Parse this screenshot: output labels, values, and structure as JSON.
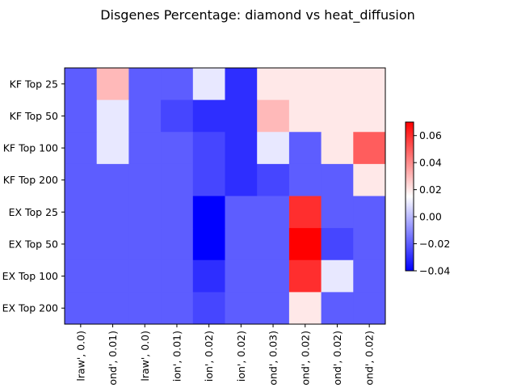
{
  "chart_data": {
    "type": "heatmap",
    "title": "Disgenes Percentage: diamond vs heat_diffusion",
    "xlabel": "",
    "ylabel": "",
    "row_labels": [
      "KF Top 25",
      "KF Top 50",
      "KF Top 100",
      "KF Top 200",
      "EX Top 25",
      "EX Top 50",
      "EX Top 100",
      "EX Top 200"
    ],
    "col_labels": [
      "lraw', 0.0)",
      "ond', 0.01)",
      "lraw', 0.0)",
      "ion', 0.01)",
      "ion', 0.02)",
      "ion', 0.02)",
      "ond', 0.03)",
      "ond', 0.02)",
      "ond', 0.02)",
      "ond', 0.02)"
    ],
    "values": [
      [
        -0.02,
        0.03,
        -0.02,
        -0.02,
        0.01,
        -0.03,
        0.02,
        0.02,
        0.02,
        0.02
      ],
      [
        -0.02,
        0.01,
        -0.02,
        -0.025,
        -0.03,
        -0.03,
        0.03,
        0.02,
        0.02,
        0.02
      ],
      [
        -0.02,
        0.01,
        -0.02,
        -0.02,
        -0.025,
        -0.03,
        0.01,
        -0.02,
        0.02,
        0.05
      ],
      [
        -0.02,
        -0.02,
        -0.02,
        -0.02,
        -0.025,
        -0.03,
        -0.025,
        -0.02,
        -0.02,
        0.02
      ],
      [
        -0.02,
        -0.02,
        -0.02,
        -0.02,
        -0.04,
        -0.02,
        -0.02,
        0.06,
        -0.02,
        -0.02
      ],
      [
        -0.02,
        -0.02,
        -0.02,
        -0.02,
        -0.04,
        -0.02,
        -0.02,
        0.07,
        -0.025,
        -0.02
      ],
      [
        -0.02,
        -0.02,
        -0.02,
        -0.02,
        -0.03,
        -0.02,
        -0.02,
        0.06,
        0.01,
        -0.02
      ],
      [
        -0.02,
        -0.02,
        -0.02,
        -0.02,
        -0.025,
        -0.02,
        -0.02,
        0.02,
        -0.02,
        -0.02
      ]
    ],
    "colormap": "bwr",
    "vmin": -0.04,
    "vmax": 0.07,
    "colorbar_ticks": [
      0.06,
      0.04,
      0.02,
      0.0,
      -0.02,
      -0.04
    ],
    "colorbar_tick_labels": [
      "0.06",
      "0.04",
      "0.02",
      "0.00",
      "−0.02",
      "−0.04"
    ],
    "grid": false
  }
}
